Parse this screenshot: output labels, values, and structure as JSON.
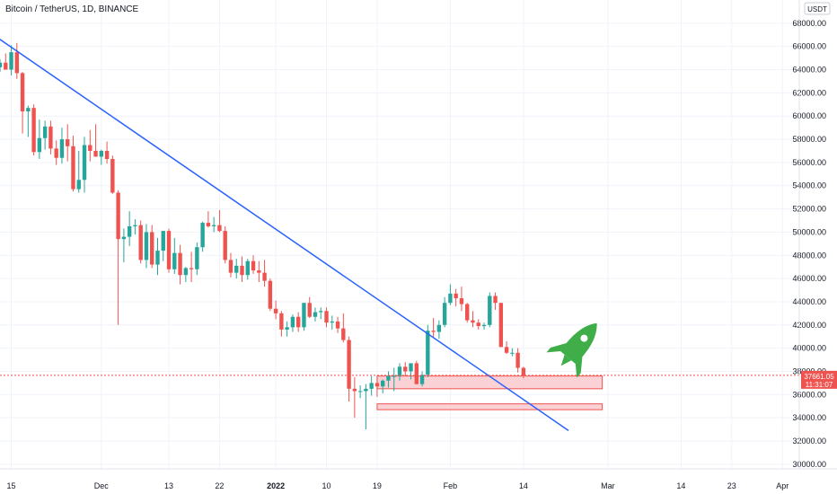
{
  "chart_title": "Bitcoin / TetherUS, 1D, BINANCE",
  "currency_badge": "USDT",
  "price_tag": {
    "price": "37661.05",
    "countdown": "11:31:07"
  },
  "colors": {
    "up": "#26a69a",
    "down": "#ef5350",
    "trendline": "#2962ff",
    "zone_fill": "#f9c7cb",
    "zone_stroke": "#ef5350",
    "rocket": "#3fae49",
    "grid": "#f0f3fa",
    "price_line": "#ef5350"
  },
  "icons": {
    "rocket": "rocket-icon"
  },
  "chart_data": {
    "type": "candlestick",
    "title": "Bitcoin / TetherUS, 1D, BINANCE",
    "y_axis": {
      "ylim": [
        29600,
        70000
      ],
      "ticks": [
        30000,
        32000,
        34000,
        36000,
        38000,
        40000,
        42000,
        44000,
        46000,
        48000,
        50000,
        52000,
        54000,
        56000,
        58000,
        60000,
        62000,
        64000,
        66000,
        68000
      ],
      "tick_labels": [
        "30000.00",
        "32000.00",
        "34000.00",
        "36000.00",
        "38000.00",
        "40000.00",
        "42000.00",
        "44000.00",
        "46000.00",
        "48000.00",
        "50000.00",
        "52000.00",
        "54000.00",
        "56000.00",
        "58000.00",
        "60000.00",
        "62000.00",
        "64000.00",
        "66000.00",
        "68000.00"
      ]
    },
    "x_axis": {
      "start_date": "2021-11-13",
      "range_days": 142,
      "tick_labels": [
        {
          "label": "15",
          "date": "2021-11-15"
        },
        {
          "label": "Dec",
          "date": "2021-12-01"
        },
        {
          "label": "13",
          "date": "2021-12-13"
        },
        {
          "label": "22",
          "date": "2021-12-22"
        },
        {
          "label": "2022",
          "date": "2022-01-01"
        },
        {
          "label": "10",
          "date": "2022-01-10"
        },
        {
          "label": "19",
          "date": "2022-01-19"
        },
        {
          "label": "Feb",
          "date": "2022-02-01"
        },
        {
          "label": "14",
          "date": "2022-02-14"
        },
        {
          "label": "Mar",
          "date": "2022-03-01"
        },
        {
          "label": "14",
          "date": "2022-03-14"
        },
        {
          "label": "23",
          "date": "2022-03-23"
        },
        {
          "label": "Apr",
          "date": "2022-04-01"
        }
      ]
    },
    "last_price": 37661.05,
    "candles_start_date": "2021-11-13",
    "candles": [
      [
        64200,
        64900,
        63800,
        64600
      ],
      [
        64600,
        65400,
        64100,
        64000
      ],
      [
        64000,
        66100,
        63500,
        65500
      ],
      [
        65500,
        66300,
        63200,
        63700
      ],
      [
        63700,
        63800,
        58500,
        60400
      ],
      [
        60400,
        60900,
        58200,
        60700
      ],
      [
        60700,
        61000,
        56600,
        56900
      ],
      [
        56900,
        59700,
        56300,
        58100
      ],
      [
        58100,
        59600,
        57100,
        59100
      ],
      [
        59100,
        59600,
        56700,
        57200
      ],
      [
        57200,
        57900,
        55800,
        56400
      ],
      [
        56400,
        59000,
        55900,
        58000
      ],
      [
        58000,
        59300,
        56100,
        57400
      ],
      [
        57400,
        58300,
        53500,
        53700
      ],
      [
        53700,
        57000,
        53400,
        54500
      ],
      [
        54500,
        58200,
        53400,
        57500
      ],
      [
        57500,
        58800,
        56100,
        57000
      ],
      [
        57000,
        59300,
        56500,
        56500
      ],
      [
        56500,
        57100,
        55800,
        57000
      ],
      [
        57000,
        57800,
        55900,
        56300
      ],
      [
        56300,
        56600,
        53300,
        53400
      ],
      [
        53400,
        53600,
        42000,
        49400
      ],
      [
        49400,
        50300,
        47400,
        49600
      ],
      [
        49600,
        51800,
        48800,
        50500
      ],
      [
        50500,
        51100,
        49800,
        50600
      ],
      [
        50600,
        51000,
        47300,
        47600
      ],
      [
        47600,
        50700,
        46900,
        50000
      ],
      [
        50000,
        50600,
        46900,
        47200
      ],
      [
        47200,
        49500,
        46300,
        48400
      ],
      [
        48400,
        50100,
        47500,
        50100
      ],
      [
        50100,
        50300,
        46500,
        46800
      ],
      [
        46800,
        49500,
        46400,
        48200
      ],
      [
        48200,
        48900,
        45500,
        46300
      ],
      [
        46300,
        47000,
        45700,
        46900
      ],
      [
        46900,
        48300,
        45700,
        46800
      ],
      [
        46800,
        49100,
        46300,
        48700
      ],
      [
        48700,
        50900,
        48300,
        50800
      ],
      [
        50800,
        51800,
        50400,
        50500
      ],
      [
        50500,
        51300,
        50000,
        50600
      ],
      [
        50600,
        51900,
        50000,
        50100
      ],
      [
        50100,
        50500,
        47300,
        47600
      ],
      [
        47600,
        48200,
        46100,
        46500
      ],
      [
        46500,
        47700,
        46000,
        47100
      ],
      [
        47100,
        47900,
        45700,
        46300
      ],
      [
        46300,
        47700,
        45900,
        47500
      ],
      [
        47500,
        48000,
        46400,
        46700
      ],
      [
        46700,
        47500,
        45700,
        46500
      ],
      [
        46500,
        47600,
        45300,
        45800
      ],
      [
        45800,
        46000,
        43200,
        43400
      ],
      [
        43400,
        44100,
        42500,
        43000
      ],
      [
        43000,
        43200,
        41000,
        41600
      ],
      [
        41600,
        42300,
        41000,
        41800
      ],
      [
        41800,
        42900,
        41400,
        42700
      ],
      [
        42700,
        43100,
        41400,
        41800
      ],
      [
        41800,
        43900,
        41500,
        43900
      ],
      [
        43900,
        44400,
        42600,
        42700
      ],
      [
        42700,
        43500,
        42300,
        43100
      ],
      [
        43100,
        43500,
        42500,
        43200
      ],
      [
        43200,
        43500,
        41800,
        42200
      ],
      [
        42200,
        42800,
        41600,
        42300
      ],
      [
        42300,
        42700,
        41300,
        41700
      ],
      [
        41700,
        43000,
        40500,
        40700
      ],
      [
        40700,
        41000,
        35400,
        36500
      ],
      [
        36500,
        37500,
        34000,
        36300
      ],
      [
        36300,
        36800,
        35700,
        36300
      ],
      [
        36300,
        36900,
        33000,
        36500
      ],
      [
        36500,
        37600,
        35900,
        37000
      ],
      [
        37000,
        37500,
        35800,
        36700
      ],
      [
        36700,
        37300,
        36100,
        37200
      ],
      [
        37200,
        38000,
        36600,
        37600
      ],
      [
        37600,
        38300,
        36300,
        37600
      ],
      [
        37600,
        38700,
        37200,
        38400
      ],
      [
        38400,
        38800,
        37600,
        38000
      ],
      [
        38000,
        38700,
        37300,
        38700
      ],
      [
        38700,
        38900,
        36900,
        36900
      ],
      [
        36900,
        38000,
        36700,
        37700
      ],
      [
        37700,
        42000,
        37500,
        41500
      ],
      [
        41500,
        42600,
        40900,
        41400
      ],
      [
        41400,
        42400,
        40800,
        42000
      ],
      [
        42000,
        44400,
        41800,
        43900
      ],
      [
        43900,
        45500,
        43700,
        44700
      ],
      [
        44700,
        45100,
        43600,
        44300
      ],
      [
        44300,
        45300,
        43200,
        43800
      ],
      [
        43800,
        43900,
        42200,
        42400
      ],
      [
        42400,
        43200,
        41800,
        42200
      ],
      [
        42200,
        42500,
        41600,
        41900
      ],
      [
        41900,
        42200,
        41600,
        42000
      ],
      [
        42000,
        44800,
        41800,
        44500
      ],
      [
        44500,
        44800,
        43300,
        43900
      ],
      [
        43900,
        43900,
        40100,
        40100
      ],
      [
        40100,
        40600,
        39500,
        39600
      ],
      [
        39600,
        40000,
        39300,
        39600
      ],
      [
        39600,
        40000,
        37900,
        38300
      ],
      [
        38300,
        38400,
        37400,
        37661
      ]
    ],
    "series": [
      {
        "type": "trendline",
        "points": [
          [
            "2021-11-10",
            67600
          ],
          [
            "2022-02-22",
            32900
          ]
        ]
      }
    ],
    "zones": [
      {
        "type": "rectangle",
        "from": "2022-01-19",
        "to": "2022-02-28",
        "top": 37600,
        "bottom": 36500
      },
      {
        "type": "rectangle",
        "from": "2022-01-19",
        "to": "2022-02-28",
        "top": 35200,
        "bottom": 34700
      }
    ]
  }
}
